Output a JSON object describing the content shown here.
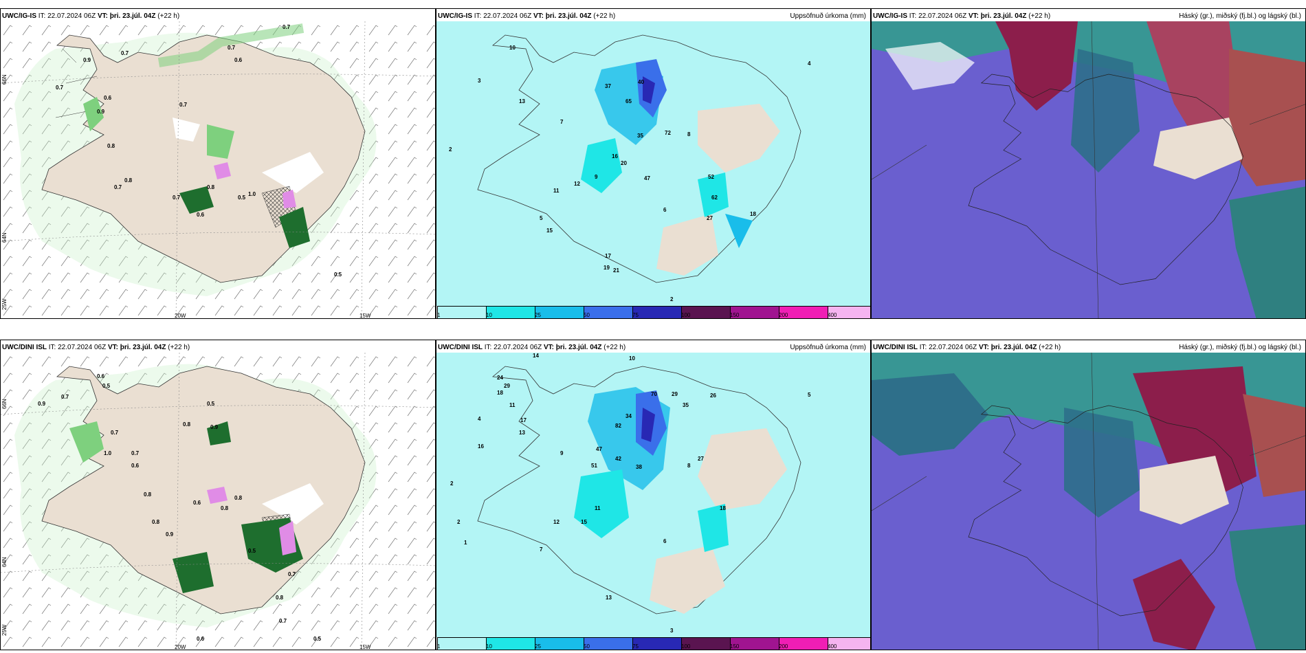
{
  "panels": [
    {
      "model": "UWC/IG-IS",
      "init": "IT: 22.07.2024 06Z",
      "valid_label": "VT:",
      "valid": "þri. 23.júl. 04Z",
      "lead": "(+22 h)",
      "right_title": ""
    },
    {
      "model": "UWC/IG-IS",
      "init": "IT: 22.07.2024 06Z",
      "valid_label": "VT:",
      "valid": "þri. 23.júl. 04Z",
      "lead": "(+22 h)",
      "right_title": "Uppsöfnuð úrkoma (mm)"
    },
    {
      "model": "UWC/IG-IS",
      "init": "IT: 22.07.2024 06Z",
      "valid_label": "VT:",
      "valid": "þri. 23.júl. 04Z",
      "lead": "(+22 h)",
      "right_title": "Háský (gr.), miðský (fj.bl.) og lágský (bl.)"
    },
    {
      "model": "UWC/DINI ISL",
      "init": "IT: 22.07.2024 06Z",
      "valid_label": "VT:",
      "valid": "þri. 23.júl. 04Z",
      "lead": "(+22 h)",
      "right_title": ""
    },
    {
      "model": "UWC/DINI ISL",
      "init": "IT: 22.07.2024 06Z",
      "valid_label": "VT:",
      "valid": "þri. 23.júl. 04Z",
      "lead": "(+22 h)",
      "right_title": "Uppsöfnuð úrkoma (mm)"
    },
    {
      "model": "UWC/DINI ISL",
      "init": "IT: 22.07.2024 06Z",
      "valid_label": "VT:",
      "valid": "þri. 23.júl. 04Z",
      "lead": "(+22 h)",
      "right_title": "Háský (gr.), miðský (fj.bl.) og lágský (bl.)"
    }
  ],
  "axis_labels": {
    "lon_20": "20W",
    "lon_15": "15W",
    "lat_66": "66N",
    "lat_64": "64N",
    "lon_25": "25W"
  },
  "colorbar": {
    "labels": [
      "1",
      "10",
      "25",
      "50",
      "75",
      "100",
      "150",
      "200",
      "400"
    ],
    "colors": [
      "#b3f5f5",
      "#1fe6e6",
      "#19bdea",
      "#3a6fea",
      "#2828b4",
      "#5a1450",
      "#a01490",
      "#f01eb4",
      "#f5b4f0"
    ]
  },
  "wind_gust_labels_top": [
    "0.7",
    "0.9",
    "0.7",
    "0.6",
    "0.9",
    "0.8",
    "0.7",
    "0.8",
    "0.7",
    "1.0",
    "0.7",
    "0.6",
    "0.5",
    "0.6",
    "0.7",
    "0.7",
    "0.8",
    "0.5"
  ],
  "wind_gust_labels_bottom": [
    "0.6",
    "0.5",
    "0.9",
    "0.7",
    "0.8",
    "0.9",
    "0.5",
    "0.8",
    "0.7",
    "1.0",
    "0.7",
    "0.6",
    "0.8",
    "0.8",
    "0.9",
    "0.8",
    "0.6",
    "0.5",
    "0.7",
    "0.6",
    "0.8",
    "0.7",
    "0.5"
  ],
  "precip_labels_top": [
    "10",
    "10",
    "15",
    "22",
    "28",
    "13",
    "37",
    "40",
    "65",
    "35",
    "72",
    "16",
    "20",
    "12",
    "15",
    "10",
    "47",
    "52",
    "62",
    "27",
    "18",
    "2",
    "2",
    "3",
    "4",
    "5",
    "7",
    "9",
    "11",
    "13",
    "19",
    "21",
    "17",
    "8",
    "6"
  ],
  "precip_labels_bottom": [
    "14",
    "10",
    "24",
    "29",
    "18",
    "17",
    "11",
    "34",
    "82",
    "70",
    "29",
    "26",
    "35",
    "38",
    "42",
    "51",
    "47",
    "27",
    "18",
    "13",
    "16",
    "2",
    "3",
    "4",
    "5",
    "7",
    "9",
    "11",
    "12",
    "13",
    "15",
    "2",
    "1",
    "8",
    "6"
  ],
  "colors": {
    "land": "#eadfd2",
    "light_green": "#c8f0c8",
    "mid_green": "#7ed07e",
    "dark_green": "#1e6e2e",
    "pink": "#e08ce6",
    "cyan_base": "#c0f7f7",
    "cloud_blue": "#6a5fcf",
    "cloud_dark": "#8c1e4b",
    "cloud_green": "#2fa08a"
  }
}
